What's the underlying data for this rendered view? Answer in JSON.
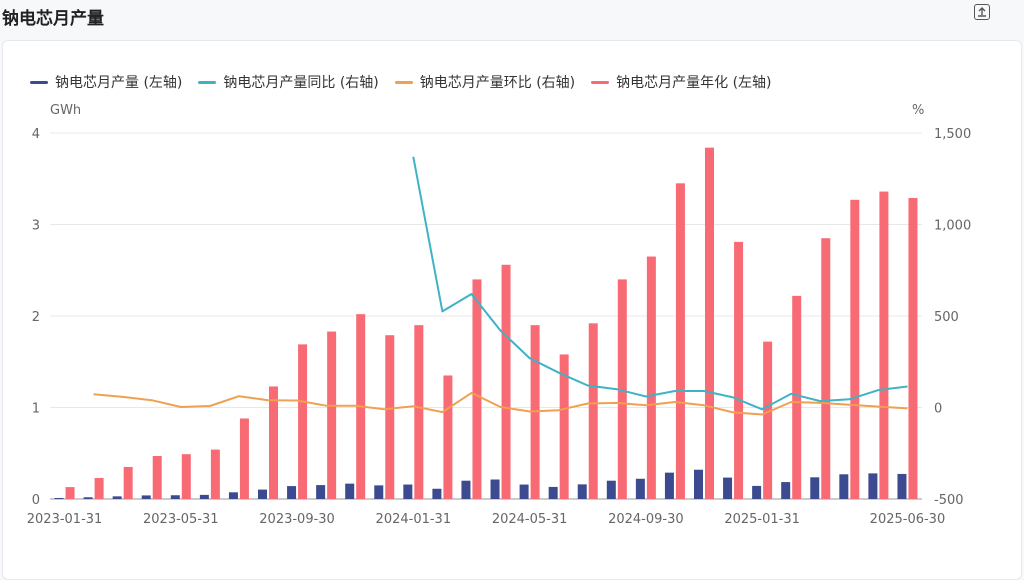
{
  "page": {
    "title": "钠电芯月产量",
    "export_icon": "export-icon"
  },
  "chart_data": {
    "type": "bar",
    "legend": [
      {
        "name": "钠电芯月产量 (左轴)",
        "color": "#3c4a8f"
      },
      {
        "name": "钠电芯月产量同比 (右轴)",
        "color": "#3fb3c4"
      },
      {
        "name": "钠电芯月产量环比 (右轴)",
        "color": "#f0a050"
      },
      {
        "name": "钠电芯月产量年化 (左轴)",
        "color": "#f86a74"
      }
    ],
    "y_left_unit": "GWh",
    "y_right_unit": "%",
    "y_left_ticks": [
      "0",
      "1",
      "2",
      "3",
      "4"
    ],
    "y_right_ticks": [
      "-500",
      "0",
      "500",
      "1,000",
      "1,500"
    ],
    "ylim_left": [
      0,
      4
    ],
    "ylim_right": [
      -500,
      1500
    ],
    "x_tick_labels": [
      "2023-01-31",
      "2023-05-31",
      "2023-09-30",
      "2024-01-31",
      "2024-05-31",
      "2024-09-30",
      "2025-01-31",
      "2025-06-30"
    ],
    "categories": [
      "2023-01-31",
      "2023-02-28",
      "2023-03-31",
      "2023-04-30",
      "2023-05-31",
      "2023-06-30",
      "2023-07-31",
      "2023-08-31",
      "2023-09-30",
      "2023-10-31",
      "2023-11-30",
      "2023-12-31",
      "2024-01-31",
      "2024-02-29",
      "2024-03-31",
      "2024-04-30",
      "2024-05-31",
      "2024-06-30",
      "2024-07-31",
      "2024-08-31",
      "2024-09-30",
      "2024-10-31",
      "2024-11-30",
      "2024-12-31",
      "2025-01-31",
      "2025-02-28",
      "2025-03-31",
      "2025-04-30",
      "2025-05-31",
      "2025-06-30"
    ],
    "series": [
      {
        "name": "钠电芯月产量 (左轴)",
        "axis": "left",
        "kind": "bar",
        "values": [
          0.011,
          0.019,
          0.029,
          0.039,
          0.041,
          0.045,
          0.073,
          0.103,
          0.141,
          0.152,
          0.168,
          0.149,
          0.158,
          0.112,
          0.2,
          0.213,
          0.158,
          0.132,
          0.16,
          0.2,
          0.221,
          0.288,
          0.32,
          0.234,
          0.143,
          0.185,
          0.237,
          0.27,
          0.28,
          0.274
        ]
      },
      {
        "name": "钠电芯月产量年化 (左轴)",
        "axis": "left",
        "kind": "bar",
        "values": [
          0.13,
          0.23,
          0.35,
          0.47,
          0.49,
          0.54,
          0.88,
          1.23,
          1.69,
          1.83,
          2.02,
          1.79,
          1.9,
          1.35,
          2.4,
          2.56,
          1.9,
          1.58,
          1.92,
          2.4,
          2.65,
          3.45,
          3.84,
          2.81,
          1.72,
          2.22,
          2.85,
          3.27,
          3.36,
          3.29
        ]
      },
      {
        "name": "钠电芯月产量同比 (右轴)",
        "axis": "right",
        "kind": "line",
        "values": [
          null,
          null,
          null,
          null,
          null,
          null,
          null,
          null,
          null,
          null,
          null,
          null,
          1370,
          525,
          620,
          420,
          270,
          190,
          120,
          100,
          60,
          90,
          90,
          55,
          -10,
          75,
          35,
          45,
          95,
          115
        ]
      },
      {
        "name": "钠电芯月产量环比 (右轴)",
        "axis": "right",
        "kind": "line",
        "values": [
          null,
          72,
          58,
          40,
          3,
          8,
          62,
          40,
          38,
          10,
          10,
          -10,
          7,
          -25,
          80,
          3,
          -22,
          -15,
          22,
          25,
          12,
          30,
          12,
          -27,
          -38,
          30,
          25,
          15,
          5,
          -5
        ]
      }
    ]
  }
}
